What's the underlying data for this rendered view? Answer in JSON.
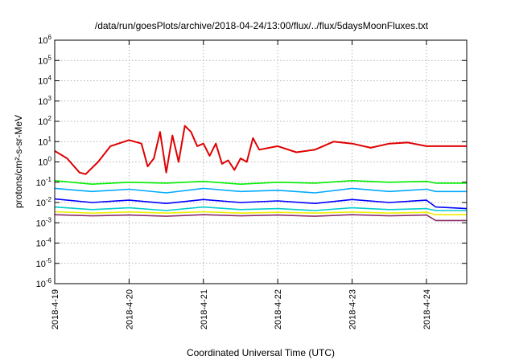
{
  "chart_data": {
    "type": "line",
    "title": "/data/run/goesPlots/archive/2018-04-24/13:00/flux/../flux/5daysMoonFluxes.txt",
    "xlabel": "Coordinated Universal Time (UTC)",
    "ylabel": "protons/cm²-s-sr-MeV",
    "yscale": "log",
    "ylim": [
      1e-06,
      1000000.0
    ],
    "xlim": [
      "2018-04-19 00:00",
      "2018-04-24 13:00"
    ],
    "x_ticks": [
      "2018-4-19",
      "2018-4-20",
      "2018-4-21",
      "2018-4-22",
      "2018-4-23",
      "2018-4-24"
    ],
    "y_tick_exponents": [
      -6,
      -5,
      -4,
      -3,
      -2,
      -1,
      0,
      1,
      2,
      3,
      4,
      5,
      6
    ],
    "grid": true,
    "legend": "none",
    "series": [
      {
        "color": "#e00000",
        "x": [
          "2018-04-19 00:00",
          "2018-04-19 04:00",
          "2018-04-19 08:00",
          "2018-04-19 10:00",
          "2018-04-19 14:00",
          "2018-04-19 18:00",
          "2018-04-20 00:00",
          "2018-04-20 04:00",
          "2018-04-20 06:00",
          "2018-04-20 08:00",
          "2018-04-20 10:00",
          "2018-04-20 12:00",
          "2018-04-20 14:00",
          "2018-04-20 16:00",
          "2018-04-20 18:00",
          "2018-04-20 20:00",
          "2018-04-20 22:00",
          "2018-04-21 00:00",
          "2018-04-21 02:00",
          "2018-04-21 04:00",
          "2018-04-21 06:00",
          "2018-04-21 08:00",
          "2018-04-21 10:00",
          "2018-04-21 12:00",
          "2018-04-21 14:00",
          "2018-04-21 16:00",
          "2018-04-21 18:00",
          "2018-04-22 00:00",
          "2018-04-22 06:00",
          "2018-04-22 12:00",
          "2018-04-22 18:00",
          "2018-04-23 00:00",
          "2018-04-23 06:00",
          "2018-04-23 12:00",
          "2018-04-23 18:00",
          "2018-04-24 00:00",
          "2018-04-24 06:00",
          "2018-04-24 13:00"
        ],
        "y": [
          3.5,
          1.5,
          0.3,
          0.25,
          1.0,
          6.0,
          12,
          8,
          0.6,
          1.5,
          30,
          0.3,
          20,
          1.0,
          60,
          30,
          6,
          8,
          2.0,
          8,
          0.8,
          1.2,
          0.4,
          1.5,
          1.0,
          15,
          4,
          6,
          3,
          4,
          10,
          8,
          5,
          8,
          9,
          6,
          6,
          6
        ]
      },
      {
        "color": "#00ee00",
        "x": [
          "2018-04-19 00:00",
          "2018-04-19 12:00",
          "2018-04-20 00:00",
          "2018-04-20 12:00",
          "2018-04-21 00:00",
          "2018-04-21 12:00",
          "2018-04-22 00:00",
          "2018-04-22 12:00",
          "2018-04-23 00:00",
          "2018-04-23 12:00",
          "2018-04-24 00:00",
          "2018-04-24 03:00",
          "2018-04-24 13:00"
        ],
        "y": [
          0.12,
          0.08,
          0.1,
          0.09,
          0.11,
          0.08,
          0.1,
          0.09,
          0.12,
          0.1,
          0.11,
          0.09,
          0.09
        ]
      },
      {
        "color": "#00aaff",
        "x": [
          "2018-04-19 00:00",
          "2018-04-19 12:00",
          "2018-04-20 00:00",
          "2018-04-20 12:00",
          "2018-04-21 00:00",
          "2018-04-21 12:00",
          "2018-04-22 00:00",
          "2018-04-22 12:00",
          "2018-04-23 00:00",
          "2018-04-23 12:00",
          "2018-04-24 00:00",
          "2018-04-24 03:00",
          "2018-04-24 13:00"
        ],
        "y": [
          0.05,
          0.035,
          0.045,
          0.03,
          0.05,
          0.035,
          0.04,
          0.03,
          0.05,
          0.035,
          0.045,
          0.035,
          0.035
        ]
      },
      {
        "color": "#0000ff",
        "x": [
          "2018-04-19 00:00",
          "2018-04-19 12:00",
          "2018-04-20 00:00",
          "2018-04-20 12:00",
          "2018-04-21 00:00",
          "2018-04-21 12:00",
          "2018-04-22 00:00",
          "2018-04-22 12:00",
          "2018-04-23 00:00",
          "2018-04-23 12:00",
          "2018-04-24 00:00",
          "2018-04-24 03:00",
          "2018-04-24 13:00"
        ],
        "y": [
          0.015,
          0.01,
          0.013,
          0.009,
          0.014,
          0.01,
          0.012,
          0.009,
          0.014,
          0.01,
          0.013,
          0.006,
          0.005
        ]
      },
      {
        "color": "#00cccc",
        "x": [
          "2018-04-19 00:00",
          "2018-04-19 12:00",
          "2018-04-20 00:00",
          "2018-04-20 12:00",
          "2018-04-21 00:00",
          "2018-04-21 12:00",
          "2018-04-22 00:00",
          "2018-04-22 12:00",
          "2018-04-23 00:00",
          "2018-04-23 12:00",
          "2018-04-24 00:00",
          "2018-04-24 03:00",
          "2018-04-24 13:00"
        ],
        "y": [
          0.006,
          0.0045,
          0.0055,
          0.004,
          0.006,
          0.0045,
          0.005,
          0.004,
          0.0055,
          0.0045,
          0.005,
          0.004,
          0.004
        ]
      },
      {
        "color": "#eeee00",
        "x": [
          "2018-04-19 00:00",
          "2018-04-19 12:00",
          "2018-04-20 00:00",
          "2018-04-20 12:00",
          "2018-04-21 00:00",
          "2018-04-21 12:00",
          "2018-04-22 00:00",
          "2018-04-22 12:00",
          "2018-04-23 00:00",
          "2018-04-23 12:00",
          "2018-04-24 00:00",
          "2018-04-24 03:00",
          "2018-04-24 13:00"
        ],
        "y": [
          0.0035,
          0.003,
          0.0034,
          0.003,
          0.0035,
          0.003,
          0.0033,
          0.003,
          0.0034,
          0.003,
          0.0033,
          0.0025,
          0.0025
        ]
      },
      {
        "color": "#8b2e6e",
        "x": [
          "2018-04-19 00:00",
          "2018-04-19 12:00",
          "2018-04-20 00:00",
          "2018-04-20 12:00",
          "2018-04-21 00:00",
          "2018-04-21 12:00",
          "2018-04-22 00:00",
          "2018-04-22 12:00",
          "2018-04-23 00:00",
          "2018-04-23 12:00",
          "2018-04-24 00:00",
          "2018-04-24 03:00",
          "2018-04-24 13:00"
        ],
        "y": [
          0.0025,
          0.0022,
          0.0024,
          0.0021,
          0.0025,
          0.0022,
          0.0024,
          0.0021,
          0.0025,
          0.0022,
          0.0024,
          0.0013,
          0.0013
        ]
      }
    ]
  }
}
